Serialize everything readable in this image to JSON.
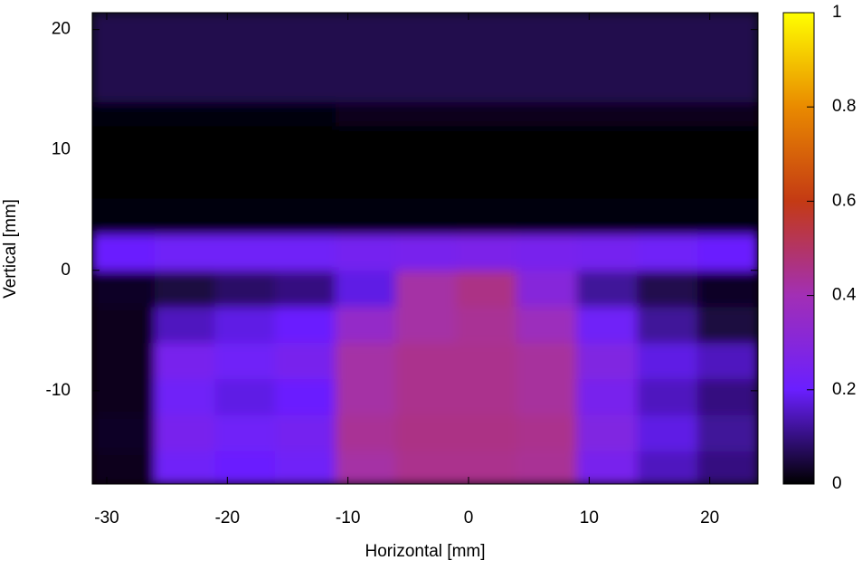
{
  "chart_data": {
    "type": "heatmap",
    "xlabel": "Horizontal [mm]",
    "ylabel": "Vertical [mm]",
    "xlim": [
      -31.2,
      24
    ],
    "ylim": [
      -17.75,
      21.4
    ],
    "xticks": [
      -30,
      -20,
      -10,
      0,
      10,
      20
    ],
    "yticks": [
      -10,
      0,
      10,
      20
    ],
    "xbins": [
      -31.2,
      -26,
      -21,
      -16,
      -11,
      -6,
      -1,
      4,
      9,
      14,
      19,
      24
    ],
    "ybins": [
      -17.75,
      -15,
      -12,
      -9,
      -6,
      -3,
      0,
      3,
      6,
      9,
      12,
      14,
      17,
      21.4
    ],
    "z": [
      [
        0.02,
        0.22,
        0.2,
        0.22,
        0.42,
        0.45,
        0.45,
        0.44,
        0.25,
        0.15,
        0.1
      ],
      [
        0.03,
        0.25,
        0.22,
        0.24,
        0.44,
        0.46,
        0.46,
        0.45,
        0.28,
        0.18,
        0.12
      ],
      [
        0.02,
        0.22,
        0.18,
        0.2,
        0.42,
        0.45,
        0.45,
        0.43,
        0.25,
        0.15,
        0.1
      ],
      [
        0.02,
        0.25,
        0.22,
        0.25,
        0.42,
        0.45,
        0.45,
        0.43,
        0.28,
        0.18,
        0.15
      ],
      [
        0.02,
        0.15,
        0.18,
        0.2,
        0.35,
        0.42,
        0.44,
        0.38,
        0.22,
        0.12,
        0.05
      ],
      [
        0.03,
        0.05,
        0.08,
        0.1,
        0.18,
        0.42,
        0.46,
        0.3,
        0.12,
        0.06,
        0.03
      ],
      [
        0.2,
        0.22,
        0.22,
        0.22,
        0.24,
        0.25,
        0.26,
        0.25,
        0.24,
        0.22,
        0.2
      ],
      [
        0.01,
        0.01,
        0.01,
        0.01,
        0.01,
        0.01,
        0.01,
        0.01,
        0.01,
        0.01,
        0.01
      ],
      [
        0,
        0,
        0,
        0,
        0,
        0,
        0,
        0,
        0,
        0,
        0
      ],
      [
        0,
        0,
        0,
        0,
        0,
        0,
        0,
        0,
        0,
        0,
        0
      ],
      [
        0.01,
        0.01,
        0.01,
        0.01,
        0.02,
        0.02,
        0.02,
        0.02,
        0.02,
        0.02,
        0.02
      ],
      [
        0.06,
        0.06,
        0.06,
        0.06,
        0.06,
        0.06,
        0.06,
        0.06,
        0.06,
        0.06,
        0.06
      ],
      [
        0.06,
        0.06,
        0.06,
        0.06,
        0.06,
        0.06,
        0.06,
        0.06,
        0.06,
        0.06,
        0.06
      ]
    ],
    "colorscale": [
      "#000000",
      "#6a1fff",
      "#a22fb5",
      "#c43a14",
      "#e98a00",
      "#ffff00"
    ],
    "clim": [
      0,
      1
    ],
    "cticks": [
      0,
      0.2,
      0.4,
      0.6,
      0.8,
      1
    ]
  }
}
